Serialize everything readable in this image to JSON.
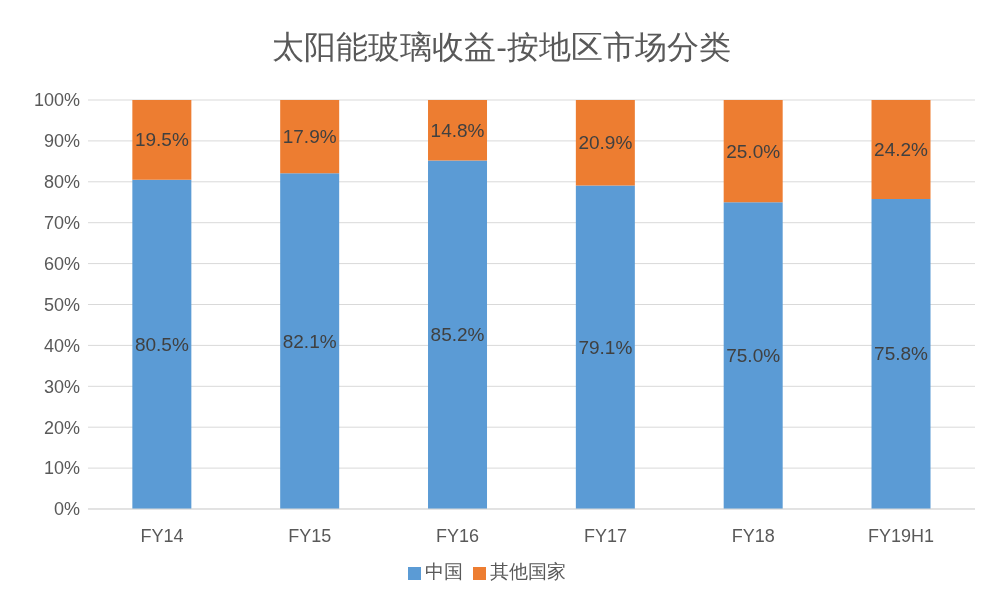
{
  "chart_data": {
    "type": "bar",
    "title": "太阳能玻璃收益-按地区市场分类",
    "stacked": true,
    "categories": [
      "FY14",
      "FY15",
      "FY16",
      "FY17",
      "FY18",
      "FY19H1"
    ],
    "series": [
      {
        "name": "中国",
        "color": "#5b9bd5",
        "values": [
          80.5,
          82.1,
          85.2,
          79.1,
          75.0,
          75.8
        ],
        "value_labels": [
          "80.5%",
          "82.1%",
          "85.2%",
          "79.1%",
          "75.0%",
          "75.8%"
        ]
      },
      {
        "name": "其他国家",
        "color": "#ed7d31",
        "values": [
          19.5,
          17.9,
          14.8,
          20.9,
          25.0,
          24.2
        ],
        "value_labels": [
          "19.5%",
          "17.9%",
          "14.8%",
          "20.9%",
          "25.0%",
          "24.2%"
        ]
      }
    ],
    "ylim": [
      0,
      100
    ],
    "yticks": [
      {
        "value": 0,
        "label": "0%"
      },
      {
        "value": 10,
        "label": "10%"
      },
      {
        "value": 20,
        "label": "20%"
      },
      {
        "value": 30,
        "label": "30%"
      },
      {
        "value": 40,
        "label": "40%"
      },
      {
        "value": 50,
        "label": "50%"
      },
      {
        "value": 60,
        "label": "60%"
      },
      {
        "value": 70,
        "label": "70%"
      },
      {
        "value": 80,
        "label": "80%"
      },
      {
        "value": 90,
        "label": "90%"
      },
      {
        "value": 100,
        "label": "100%"
      }
    ],
    "grid": "y",
    "legend": "bottom"
  }
}
